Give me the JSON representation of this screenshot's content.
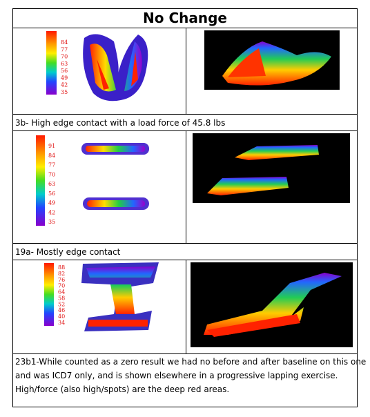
{
  "title": "No Change",
  "rows": [
    {
      "legend": [
        "84",
        "77",
        "70",
        "63",
        "56",
        "49",
        "42",
        "35"
      ],
      "caption": [
        "3b- High edge contact with a load force of 45.8 lbs"
      ]
    },
    {
      "legend": [
        "91",
        "84",
        "77",
        "70",
        "63",
        "56",
        "49",
        "42",
        "35"
      ],
      "caption": [
        "19a- Mostly edge contact"
      ]
    },
    {
      "legend": [
        "88",
        "82",
        "76",
        "70",
        "64",
        "58",
        "52",
        "46",
        "40",
        "34"
      ],
      "caption": [
        "23b1-While counted as a zero result we had no before and after baseline on this one",
        "and was ICD7 only, and is shown elsewhere in a progressive lapping exercise.",
        "High/force (also high/spots) are the deep red areas."
      ]
    }
  ]
}
